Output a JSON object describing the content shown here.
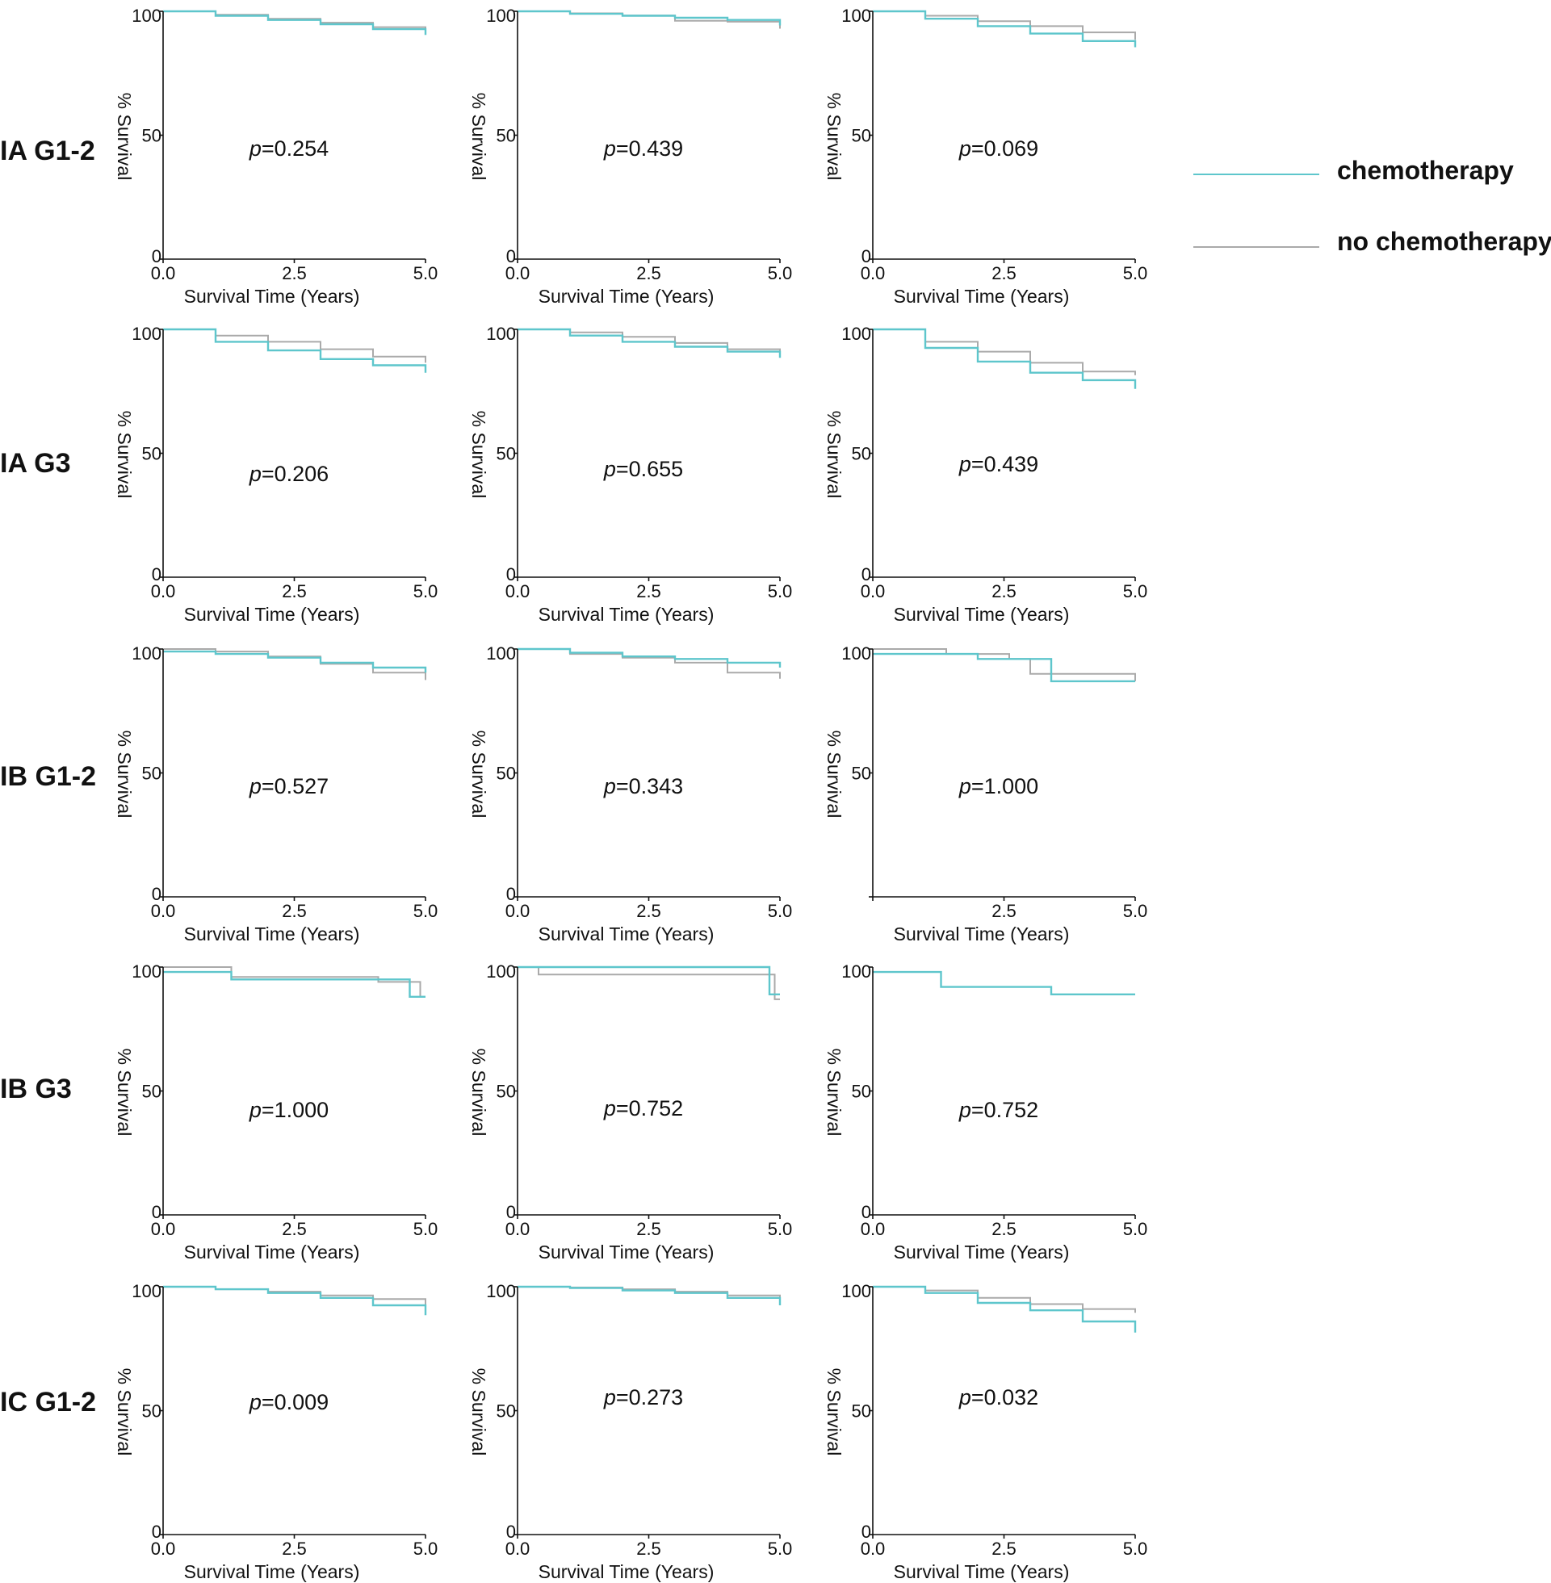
{
  "colors": {
    "chemo": "#5ec6cc",
    "no_chemo": "#aaaaaa",
    "axis": "#111111"
  },
  "legend": [
    {
      "label": "chemotherapy",
      "color": "#5ec6cc"
    },
    {
      "label": "no chemotherapy",
      "color": "#aaaaaa"
    }
  ],
  "row_labels": [
    "IA G1-2",
    "IA G3",
    "IB G1-2",
    "IB G3",
    "IC G1-2"
  ],
  "chart_data": [
    {
      "type": "line",
      "row": 0,
      "col": 0,
      "xlabel": "Survival Time (Years)",
      "ylabel": "% Survival",
      "xlim": [
        0,
        5
      ],
      "ylim": [
        0,
        100
      ],
      "xticks": [
        "0.0",
        "2.5",
        "5.0"
      ],
      "yticks": [
        "0",
        "50",
        "100"
      ],
      "p_prefix": "p",
      "p_value": "=0.254",
      "series": [
        {
          "name": "chemotherapy",
          "x": [
            0,
            1,
            2,
            3,
            4,
            5
          ],
          "y": [
            100,
            98.2,
            96.5,
            94.8,
            92.8,
            90.5
          ]
        },
        {
          "name": "no chemotherapy",
          "x": [
            0,
            1,
            2,
            3,
            4,
            5
          ],
          "y": [
            100,
            98.6,
            97,
            95.4,
            93.6,
            91.3
          ]
        }
      ]
    },
    {
      "type": "line",
      "row": 0,
      "col": 1,
      "xlabel": "Survival Time (Years)",
      "ylabel": "% Survival",
      "xlim": [
        0,
        5
      ],
      "ylim": [
        0,
        100
      ],
      "xticks": [
        "0.0",
        "2.5",
        "5.0"
      ],
      "yticks": [
        "0",
        "50",
        "100"
      ],
      "p_prefix": "p",
      "p_value": "=0.439",
      "series": [
        {
          "name": "chemotherapy",
          "x": [
            0,
            1,
            2,
            3,
            4,
            5
          ],
          "y": [
            100,
            99,
            98.2,
            97.4,
            96.5,
            94.3
          ]
        },
        {
          "name": "no chemotherapy",
          "x": [
            0,
            1,
            2,
            3,
            4,
            5
          ],
          "y": [
            100,
            99.2,
            98.3,
            96.2,
            95.8,
            93
          ]
        }
      ]
    },
    {
      "type": "line",
      "row": 0,
      "col": 2,
      "xlabel": "Survival Time (Years)",
      "ylabel": "% Survival",
      "xlim": [
        0,
        5
      ],
      "ylim": [
        0,
        100
      ],
      "xticks": [
        "0.0",
        "2.5",
        "5.0"
      ],
      "yticks": [
        "0",
        "50",
        "100"
      ],
      "p_prefix": "p",
      "p_value": "=0.069",
      "series": [
        {
          "name": "chemotherapy",
          "x": [
            0,
            1,
            2,
            3,
            4,
            5
          ],
          "y": [
            100,
            97,
            94,
            91,
            88,
            85.5
          ]
        },
        {
          "name": "no chemotherapy",
          "x": [
            0,
            1,
            2,
            3,
            4,
            5
          ],
          "y": [
            100,
            98.2,
            96,
            94,
            91.5,
            88.5
          ]
        }
      ]
    },
    {
      "type": "line",
      "row": 1,
      "col": 0,
      "xlabel": "Survival Time (Years)",
      "ylabel": "% Survival",
      "xlim": [
        0,
        5
      ],
      "ylim": [
        0,
        100
      ],
      "xticks": [
        "0.0",
        "2.5",
        "5.0"
      ],
      "yticks": [
        "0",
        "50",
        "100"
      ],
      "p_prefix": "p",
      "p_value": "=0.206",
      "series": [
        {
          "name": "chemotherapy",
          "x": [
            0,
            1,
            2,
            3,
            4,
            5
          ],
          "y": [
            100,
            95,
            91.5,
            88,
            85.5,
            82.5
          ]
        },
        {
          "name": "no chemotherapy",
          "x": [
            0,
            1,
            2,
            3,
            4,
            5
          ],
          "y": [
            100,
            97.5,
            95,
            92,
            89,
            86.5
          ]
        }
      ]
    },
    {
      "type": "line",
      "row": 1,
      "col": 1,
      "xlabel": "Survival Time (Years)",
      "ylabel": "% Survival",
      "xlim": [
        0,
        5
      ],
      "ylim": [
        0,
        100
      ],
      "xticks": [
        "0.0",
        "2.5",
        "5.0"
      ],
      "yticks": [
        "0",
        "50",
        "100"
      ],
      "p_prefix": "p",
      "p_value": "=0.655",
      "series": [
        {
          "name": "chemotherapy",
          "x": [
            0,
            1,
            2,
            3,
            4,
            5
          ],
          "y": [
            100,
            97.5,
            95,
            93,
            91,
            88.5
          ]
        },
        {
          "name": "no chemotherapy",
          "x": [
            0,
            1,
            2,
            3,
            4,
            5
          ],
          "y": [
            100,
            98.8,
            97,
            94.5,
            92,
            90
          ]
        }
      ]
    },
    {
      "type": "line",
      "row": 1,
      "col": 2,
      "xlabel": "Survival Time (Years)",
      "ylabel": "% Survival",
      "xlim": [
        0,
        5
      ],
      "ylim": [
        0,
        100
      ],
      "xticks": [
        "0.0",
        "2.5",
        "5.0"
      ],
      "yticks": [
        "0",
        "50",
        "100"
      ],
      "p_prefix": "p",
      "p_value": "=0.439",
      "series": [
        {
          "name": "chemotherapy",
          "x": [
            0,
            1,
            2,
            3,
            4,
            5
          ],
          "y": [
            100,
            92.5,
            87,
            82.5,
            79.5,
            76
          ]
        },
        {
          "name": "no chemotherapy",
          "x": [
            0,
            1,
            2,
            3,
            4,
            5
          ],
          "y": [
            100,
            95,
            91,
            86.5,
            83,
            81.5
          ]
        }
      ]
    },
    {
      "type": "line",
      "row": 2,
      "col": 0,
      "xlabel": "Survival Time (Years)",
      "ylabel": "% Survival",
      "xlim": [
        0,
        5
      ],
      "ylim": [
        0,
        100
      ],
      "xticks": [
        "0.0",
        "2.5",
        "5.0"
      ],
      "yticks": [
        "0",
        "50",
        "100"
      ],
      "p_prefix": "p",
      "p_value": "=0.527",
      "series": [
        {
          "name": "chemotherapy",
          "x": [
            0,
            1,
            2,
            3,
            4,
            5
          ],
          "y": [
            99,
            98,
            96.5,
            94.5,
            92.5,
            90.5
          ]
        },
        {
          "name": "no chemotherapy",
          "x": [
            0,
            1,
            2,
            3,
            4,
            5
          ],
          "y": [
            100,
            99,
            97,
            94,
            90.5,
            87.5
          ]
        }
      ]
    },
    {
      "type": "line",
      "row": 2,
      "col": 1,
      "xlabel": "Survival Time (Years)",
      "ylabel": "% Survival",
      "xlim": [
        0,
        5
      ],
      "ylim": [
        0,
        100
      ],
      "xticks": [
        "0.0",
        "2.5",
        "5.0"
      ],
      "yticks": [
        "0",
        "50",
        "100"
      ],
      "p_prefix": "p",
      "p_value": "=0.343",
      "series": [
        {
          "name": "chemotherapy",
          "x": [
            0,
            1,
            2,
            3,
            4,
            5
          ],
          "y": [
            100,
            98.5,
            97,
            96,
            94.5,
            92.5
          ]
        },
        {
          "name": "no chemotherapy",
          "x": [
            0,
            1,
            2,
            3,
            4,
            5
          ],
          "y": [
            100,
            98,
            96.5,
            94.5,
            90.5,
            88
          ]
        }
      ]
    },
    {
      "type": "line",
      "row": 2,
      "col": 2,
      "xlabel": "Survival Time (Years)",
      "ylabel": "% Survival",
      "xlim": [
        0,
        5
      ],
      "ylim": [
        0,
        100
      ],
      "xticks": [
        "",
        "2.5",
        "5.0"
      ],
      "yticks": [
        "",
        "50",
        "100"
      ],
      "p_prefix": "p",
      "p_value": "=1.000",
      "series": [
        {
          "name": "chemotherapy",
          "x": [
            0,
            1,
            2,
            3,
            3.4,
            5
          ],
          "y": [
            98,
            98,
            96,
            96,
            87,
            87
          ]
        },
        {
          "name": "no chemotherapy",
          "x": [
            0,
            1.4,
            2.6,
            3,
            4.8,
            5
          ],
          "y": [
            100,
            98,
            96,
            90,
            90,
            87
          ]
        }
      ]
    },
    {
      "type": "line",
      "row": 3,
      "col": 0,
      "xlabel": "Survival Time (Years)",
      "ylabel": "% Survival",
      "xlim": [
        0,
        5
      ],
      "ylim": [
        0,
        100
      ],
      "xticks": [
        "0.0",
        "2.5",
        "5.0"
      ],
      "yticks": [
        "0",
        "50",
        "100"
      ],
      "p_prefix": "p",
      "p_value": "=1.000",
      "series": [
        {
          "name": "chemotherapy",
          "x": [
            0,
            1.3,
            2.5,
            4.3,
            4.7,
            5
          ],
          "y": [
            98,
            95,
            95,
            95,
            88,
            88
          ]
        },
        {
          "name": "no chemotherapy",
          "x": [
            0,
            1.3,
            3.4,
            4.1,
            4.9,
            5
          ],
          "y": [
            100,
            96,
            96,
            94,
            88,
            88
          ]
        }
      ]
    },
    {
      "type": "line",
      "row": 3,
      "col": 1,
      "xlabel": "Survival Time (Years)",
      "ylabel": "% Survival",
      "xlim": [
        0,
        5
      ],
      "ylim": [
        0,
        100
      ],
      "xticks": [
        "0.0",
        "2.5",
        "5.0"
      ],
      "yticks": [
        "0",
        "50",
        "100"
      ],
      "p_prefix": "p",
      "p_value": "=0.752",
      "series": [
        {
          "name": "chemotherapy",
          "x": [
            0,
            4.3,
            4.8,
            5
          ],
          "y": [
            100,
            100,
            89,
            89
          ]
        },
        {
          "name": "no chemotherapy",
          "x": [
            0,
            0.4,
            4.2,
            4.9,
            5
          ],
          "y": [
            100,
            97,
            97,
            87,
            87
          ]
        }
      ]
    },
    {
      "type": "line",
      "row": 3,
      "col": 2,
      "xlabel": "Survival Time (Years)",
      "ylabel": "% Survival",
      "xlim": [
        0,
        5
      ],
      "ylim": [
        0,
        100
      ],
      "xticks": [
        "0.0",
        "2.5",
        "5.0"
      ],
      "yticks": [
        "0",
        "50",
        "100"
      ],
      "p_prefix": "p",
      "p_value": "=0.752",
      "series": [
        {
          "name": "chemotherapy",
          "x": [
            0,
            1.3,
            3.4,
            5
          ],
          "y": [
            98,
            92,
            89,
            89
          ]
        }
      ]
    },
    {
      "type": "line",
      "row": 4,
      "col": 0,
      "xlabel": "Survival Time (Years)",
      "ylabel": "% Survival",
      "xlim": [
        0,
        5
      ],
      "ylim": [
        0,
        100
      ],
      "xticks": [
        "0.0",
        "2.5",
        "5.0"
      ],
      "yticks": [
        "0",
        "50",
        "100"
      ],
      "p_prefix": "p",
      "p_value": "=0.009",
      "series": [
        {
          "name": "chemotherapy",
          "x": [
            0,
            1,
            2,
            3,
            4,
            5
          ],
          "y": [
            100,
            99,
            97.5,
            95.5,
            92.5,
            88.5
          ]
        },
        {
          "name": "no chemotherapy",
          "x": [
            0,
            1,
            2,
            3,
            4,
            5
          ],
          "y": [
            100,
            99,
            98,
            96.5,
            95,
            92.5
          ]
        }
      ]
    },
    {
      "type": "line",
      "row": 4,
      "col": 1,
      "xlabel": "Survival Time (Years)",
      "ylabel": "% Survival",
      "xlim": [
        0,
        5
      ],
      "ylim": [
        0,
        100
      ],
      "xticks": [
        "0.0",
        "2.5",
        "5.0"
      ],
      "yticks": [
        "0",
        "50",
        "100"
      ],
      "p_prefix": "p",
      "p_value": "=0.273",
      "series": [
        {
          "name": "chemotherapy",
          "x": [
            0,
            1,
            2,
            3,
            4,
            5
          ],
          "y": [
            100,
            99.5,
            98.5,
            97.5,
            95.5,
            92.5
          ]
        },
        {
          "name": "no chemotherapy",
          "x": [
            0,
            1,
            2,
            3,
            4,
            5
          ],
          "y": [
            100,
            99.7,
            99,
            98,
            96.5,
            94.5
          ]
        }
      ]
    },
    {
      "type": "line",
      "row": 4,
      "col": 2,
      "xlabel": "Survival Time (Years)",
      "ylabel": "% Survival",
      "xlim": [
        0,
        5
      ],
      "ylim": [
        0,
        100
      ],
      "xticks": [
        "0.0",
        "2.5",
        "5.0"
      ],
      "yticks": [
        "0",
        "50",
        "100"
      ],
      "p_prefix": "p",
      "p_value": "=0.032",
      "series": [
        {
          "name": "chemotherapy",
          "x": [
            0,
            1,
            2,
            3,
            4,
            5
          ],
          "y": [
            100,
            97.5,
            93.5,
            90.5,
            86,
            81.5
          ]
        },
        {
          "name": "no chemotherapy",
          "x": [
            0,
            1,
            2,
            3,
            4,
            5
          ],
          "y": [
            100,
            98.5,
            95.5,
            93,
            91,
            89.5
          ]
        }
      ]
    }
  ]
}
